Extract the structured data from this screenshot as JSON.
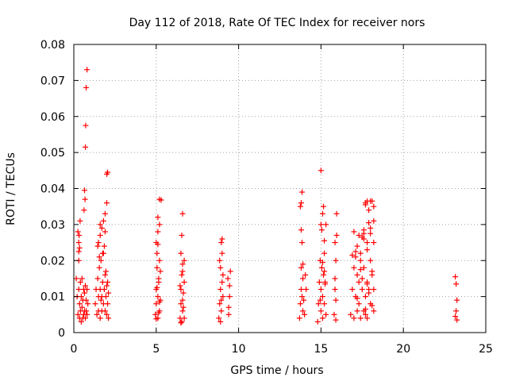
{
  "chart_data": {
    "type": "scatter",
    "title": "Day 112 of 2018, Rate Of TEC Index for receiver nors",
    "xlabel": "GPS time / hours",
    "ylabel": "ROTI / TECUs",
    "xlim": [
      0,
      25
    ],
    "ylim": [
      0,
      0.08
    ],
    "x_ticks": [
      0,
      5,
      10,
      15,
      20,
      25
    ],
    "x_tick_labels": [
      "0",
      "5",
      "10",
      "15",
      "20",
      "25"
    ],
    "y_ticks": [
      0,
      0.01,
      0.02,
      0.03,
      0.04,
      0.05,
      0.06,
      0.07,
      0.08
    ],
    "y_tick_labels": [
      "0",
      "0.01",
      "0.02",
      "0.03",
      "0.04",
      "0.05",
      "0.06",
      "0.07",
      "0.08"
    ],
    "grid": true,
    "marker": "+",
    "marker_color": "#ff0000",
    "series": [
      {
        "x": [
          0.15,
          0.2,
          0.25,
          0.3,
          0.3,
          0.35,
          0.35,
          0.4,
          0.4,
          0.45,
          0.45,
          0.5,
          0.5,
          0.55,
          0.55,
          0.6,
          0.6,
          0.65,
          0.65,
          0.7,
          0.7,
          0.75,
          0.75,
          0.8,
          0.8,
          0.85,
          0.3,
          0.32,
          0.38,
          0.62,
          0.65,
          0.68,
          0.7,
          0.72,
          0.75,
          0.8,
          0.25,
          0.3,
          0.35,
          1.3,
          1.35,
          1.4,
          1.45,
          1.5,
          1.5,
          1.55,
          1.6,
          1.6,
          1.65,
          1.7,
          1.7,
          1.75,
          1.8,
          1.8,
          1.85,
          1.9,
          1.9,
          1.95,
          2.0,
          2.0,
          2.05,
          2.1,
          2.1,
          1.5,
          1.6,
          1.7,
          1.8,
          1.9,
          2.0,
          2.0,
          2.05,
          1.9,
          1.85,
          1.75,
          1.6,
          1.55,
          1.45,
          1.95,
          2.05,
          1.65,
          4.95,
          5.0,
          5.0,
          5.05,
          5.1,
          5.1,
          5.15,
          5.2,
          5.2,
          5.25,
          5.0,
          5.1,
          5.2,
          5.05,
          5.15,
          5.25,
          5.1,
          5.2,
          5.3,
          5.0,
          5.15,
          5.05,
          5.2,
          5.1,
          6.45,
          6.5,
          6.5,
          6.55,
          6.6,
          6.6,
          6.65,
          6.7,
          6.7,
          6.5,
          6.6,
          6.55,
          6.45,
          6.65,
          6.6,
          6.7,
          6.5,
          6.55,
          6.6,
          8.8,
          8.85,
          8.9,
          8.9,
          8.95,
          9.0,
          9.0,
          9.05,
          8.85,
          8.95,
          9.0,
          9.05,
          8.9,
          8.95,
          9.35,
          9.4,
          9.45,
          9.5,
          9.4,
          9.45,
          13.7,
          13.75,
          13.8,
          13.8,
          13.85,
          13.9,
          13.9,
          13.95,
          13.8,
          13.85,
          13.75,
          13.9,
          14.0,
          14.05,
          14.1,
          13.8,
          13.85,
          14.8,
          14.85,
          14.9,
          14.95,
          15.0,
          15.0,
          15.05,
          15.1,
          15.1,
          15.15,
          15.2,
          15.2,
          15.25,
          15.3,
          15.0,
          15.1,
          15.2,
          15.05,
          15.15,
          15.25,
          14.95,
          15.1,
          15.2,
          15.0,
          15.3,
          15.8,
          15.85,
          15.9,
          15.95,
          15.9,
          15.85,
          15.95,
          15.9,
          15.85,
          16.8,
          16.9,
          17.0,
          17.0,
          17.1,
          17.2,
          17.2,
          17.3,
          17.4,
          17.4,
          17.5,
          17.6,
          17.6,
          17.7,
          17.8,
          17.8,
          17.9,
          18.0,
          18.0,
          18.1,
          18.2,
          18.2,
          17.0,
          17.2,
          17.4,
          17.6,
          17.8,
          18.0,
          18.2,
          17.1,
          17.3,
          17.5,
          17.7,
          17.9,
          18.1,
          17.6,
          17.7,
          17.8,
          17.9,
          18.0,
          18.1,
          18.2,
          17.5,
          17.3,
          17.1,
          16.9,
          17.6,
          17.8,
          18.0,
          17.7,
          17.9,
          18.2,
          17.2,
          17.4,
          17.7,
          17.8,
          18.1,
          23.15,
          23.2,
          23.25,
          23.2,
          23.25,
          23.15
        ],
        "y": [
          0.015,
          0.01,
          0.005,
          0.02,
          0.012,
          0.008,
          0.004,
          0.014,
          0.006,
          0.01,
          0.003,
          0.015,
          0.007,
          0.009,
          0.004,
          0.012,
          0.005,
          0.011,
          0.006,
          0.013,
          0.004,
          0.009,
          0.006,
          0.012,
          0.005,
          0.008,
          0.025,
          0.027,
          0.031,
          0.034,
          0.0395,
          0.037,
          0.0515,
          0.0575,
          0.068,
          0.073,
          0.028,
          0.0225,
          0.0235,
          0.008,
          0.012,
          0.005,
          0.015,
          0.01,
          0.006,
          0.018,
          0.012,
          0.004,
          0.02,
          0.01,
          0.006,
          0.014,
          0.022,
          0.008,
          0.012,
          0.016,
          0.006,
          0.01,
          0.013,
          0.005,
          0.008,
          0.011,
          0.004,
          0.025,
          0.027,
          0.029,
          0.031,
          0.033,
          0.036,
          0.044,
          0.0445,
          0.028,
          0.024,
          0.022,
          0.03,
          0.021,
          0.024,
          0.017,
          0.014,
          0.009,
          0.005,
          0.012,
          0.008,
          0.018,
          0.01,
          0.004,
          0.015,
          0.006,
          0.02,
          0.009,
          0.025,
          0.028,
          0.03,
          0.022,
          0.014,
          0.017,
          0.032,
          0.037,
          0.0368,
          0.0038,
          0.0055,
          0.0125,
          0.0085,
          0.0245,
          0.004,
          0.008,
          0.012,
          0.016,
          0.006,
          0.019,
          0.011,
          0.004,
          0.014,
          0.022,
          0.009,
          0.003,
          0.013,
          0.007,
          0.017,
          0.02,
          0.0027,
          0.027,
          0.033,
          0.004,
          0.008,
          0.012,
          0.018,
          0.006,
          0.014,
          0.022,
          0.01,
          0.02,
          0.025,
          0.026,
          0.016,
          0.003,
          0.009,
          0.015,
          0.007,
          0.013,
          0.017,
          0.005,
          0.01,
          0.004,
          0.008,
          0.012,
          0.018,
          0.01,
          0.006,
          0.015,
          0.009,
          0.036,
          0.039,
          0.035,
          0.019,
          0.005,
          0.016,
          0.012,
          0.0285,
          0.025,
          0.003,
          0.008,
          0.014,
          0.02,
          0.006,
          0.012,
          0.018,
          0.004,
          0.01,
          0.016,
          0.022,
          0.008,
          0.014,
          0.005,
          0.03,
          0.033,
          0.0255,
          0.0285,
          0.035,
          0.0135,
          0.009,
          0.0195,
          0.017,
          0.045,
          0.03,
          0.005,
          0.012,
          0.02,
          0.027,
          0.009,
          0.015,
          0.033,
          0.0035,
          0.025,
          0.005,
          0.012,
          0.018,
          0.004,
          0.01,
          0.016,
          0.006,
          0.014,
          0.02,
          0.004,
          0.012,
          0.018,
          0.006,
          0.01,
          0.014,
          0.004,
          0.012,
          0.02,
          0.008,
          0.016,
          0.006,
          0.012,
          0.028,
          0.024,
          0.022,
          0.026,
          0.023,
          0.029,
          0.025,
          0.021,
          0.008,
          0.015,
          0.005,
          0.011,
          0.017,
          0.0285,
          0.036,
          0.0365,
          0.034,
          0.0365,
          0.0365,
          0.031,
          0.0265,
          0.027,
          0.0225,
          0.0215,
          0.0275,
          0.025,
          0.0275,
          0.0355,
          0.0305,
          0.035,
          0.0095,
          0.0175,
          0.0065,
          0.0135,
          0.0075,
          0.0155,
          0.0135,
          0.009,
          0.006,
          0.0035,
          0.0045
        ]
      }
    ]
  }
}
